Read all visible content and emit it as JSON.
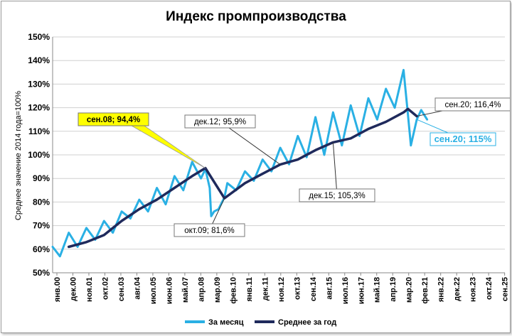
{
  "chart_data": {
    "type": "line",
    "title": "Индекс промпроизводства",
    "ylabel": "Среднее значение 2014 года=100%",
    "ylim": [
      50,
      150
    ],
    "grid": true,
    "legend_position": "bottom",
    "y_ticks": [
      "50%",
      "60%",
      "70%",
      "80%",
      "90%",
      "100%",
      "110%",
      "120%",
      "130%",
      "140%",
      "150%"
    ],
    "x_ticks": [
      "янв.00",
      "дек.00",
      "ноя.01",
      "окт.02",
      "сен.03",
      "авг.04",
      "июл.05",
      "июн.06",
      "май.07",
      "апр.08",
      "мар.09",
      "фев.10",
      "янв.11",
      "дек.11",
      "ноя.12",
      "окт.13",
      "сен.14",
      "авг.15",
      "июл.16",
      "июн.17",
      "май.18",
      "апр.19",
      "мар.20",
      "фев.21",
      "янв.22",
      "дек.22",
      "ноя.23",
      "окт.24",
      "сен.25"
    ],
    "series": [
      {
        "name": "За месяц",
        "color": "#2ab0e4",
        "x": [
          "2000-01",
          "2000-06",
          "2000-12",
          "2001-06",
          "2001-12",
          "2002-06",
          "2002-12",
          "2003-06",
          "2003-12",
          "2004-06",
          "2004-12",
          "2005-06",
          "2005-12",
          "2006-06",
          "2006-12",
          "2007-06",
          "2007-12",
          "2008-06",
          "2008-09",
          "2008-12",
          "2009-01",
          "2009-03",
          "2009-06",
          "2009-10",
          "2009-12",
          "2010-06",
          "2010-12",
          "2011-06",
          "2011-12",
          "2012-06",
          "2012-12",
          "2013-06",
          "2013-12",
          "2014-06",
          "2014-12",
          "2015-06",
          "2015-12",
          "2016-06",
          "2016-12",
          "2017-06",
          "2017-12",
          "2018-06",
          "2018-12",
          "2019-06",
          "2019-12",
          "2020-03",
          "2020-05",
          "2020-09",
          "2020-12",
          "2021-04"
        ],
        "values": [
          61,
          57,
          67,
          61,
          69,
          64,
          72,
          67,
          76,
          73,
          81,
          76,
          86,
          79,
          91,
          85,
          97,
          90,
          94,
          86,
          74,
          76,
          77,
          82,
          88,
          85,
          93,
          89,
          98,
          93,
          103,
          96,
          108,
          99,
          116,
          100,
          118,
          104,
          121,
          108,
          124,
          115,
          128,
          120,
          136,
          117,
          104,
          115,
          119,
          115
        ]
      },
      {
        "name": "Среднее за год",
        "color": "#1f2a5c",
        "x": [
          "2000-12",
          "2001-12",
          "2002-12",
          "2003-12",
          "2004-12",
          "2005-12",
          "2006-12",
          "2007-12",
          "2008-09",
          "2009-10",
          "2010-12",
          "2011-12",
          "2012-12",
          "2013-12",
          "2014-12",
          "2015-12",
          "2016-12",
          "2017-12",
          "2018-12",
          "2019-12",
          "2020-03",
          "2020-09"
        ],
        "values": [
          61,
          63,
          66,
          72,
          77,
          81,
          86,
          91,
          94.4,
          81.6,
          88,
          92,
          95.9,
          98,
          102,
          105.3,
          107,
          111,
          114,
          118,
          119.5,
          116.4
        ]
      }
    ],
    "annotations": [
      {
        "text": "сен.08; 94,4%",
        "x": "2008-09",
        "y": 94.4,
        "style": "yellow"
      },
      {
        "text": "окт.09; 81,6%",
        "x": "2009-10",
        "y": 81.6,
        "style": "boxed"
      },
      {
        "text": "дек.12; 95,9%",
        "x": "2012-12",
        "y": 95.9,
        "style": "boxed"
      },
      {
        "text": "дек.15; 105,3%",
        "x": "2015-12",
        "y": 105.3,
        "style": "boxed"
      },
      {
        "text": "сен.20; 116,4%",
        "x": "2020-09",
        "y": 116.4,
        "style": "boxed"
      },
      {
        "text": "сен.20; 115%",
        "x": "2020-09",
        "y": 115,
        "style": "cyan"
      }
    ]
  }
}
